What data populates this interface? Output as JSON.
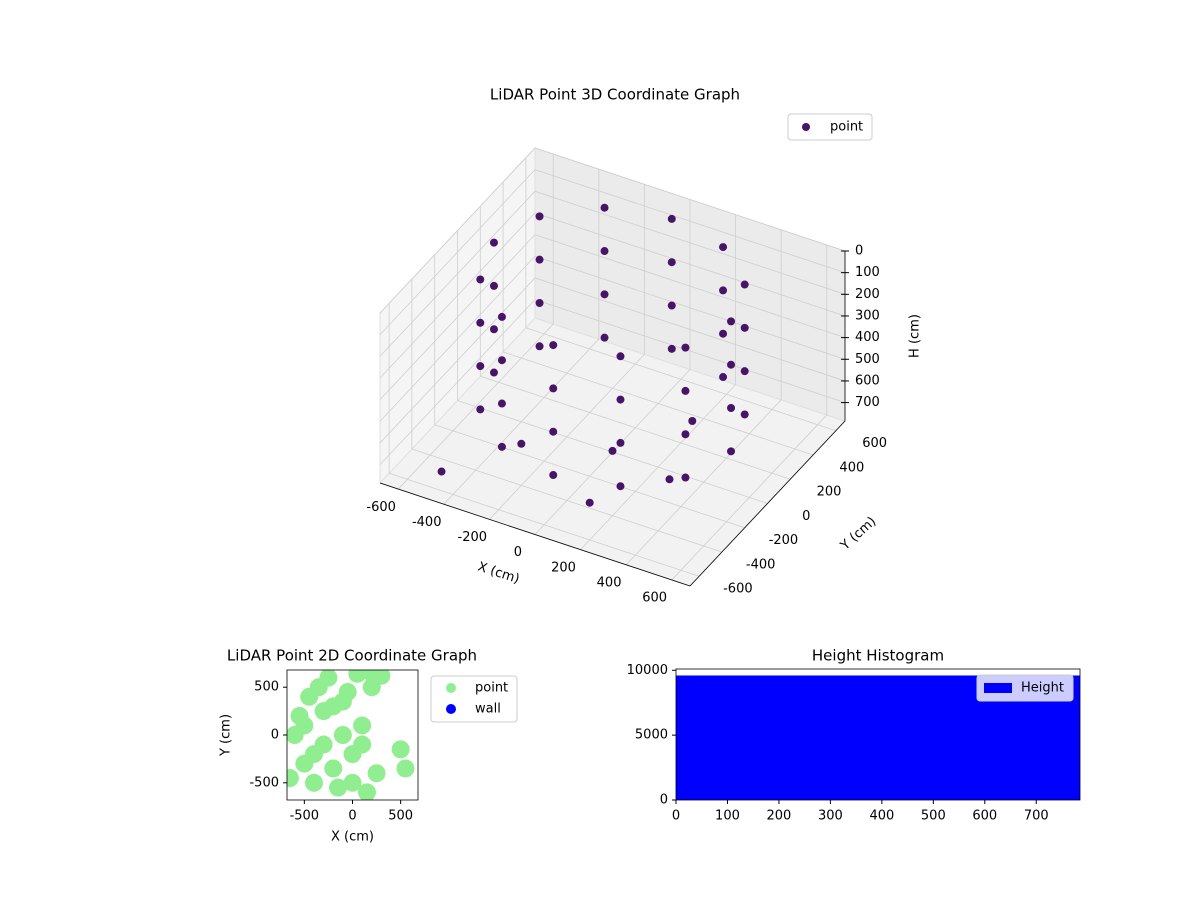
{
  "chart_data": [
    {
      "type": "scatter3d",
      "title": "LiDAR Point 3D Coordinate Graph",
      "xlabel": "X (cm)",
      "ylabel": "Y (cm)",
      "zlabel": "H (cm)",
      "xlim": [
        -680,
        680
      ],
      "ylim": [
        -680,
        680
      ],
      "zlim": [
        785,
        0
      ],
      "xticks": [
        -600,
        -400,
        -200,
        0,
        200,
        400,
        600
      ],
      "yticks": [
        -600,
        -400,
        -200,
        0,
        200,
        400,
        600
      ],
      "zticks": [
        0,
        100,
        200,
        300,
        400,
        500,
        600,
        700
      ],
      "legend": "upper right",
      "grid": true,
      "series": [
        {
          "name": "point",
          "color": "#481467",
          "x": [
            520,
            450,
            260,
            0,
            -260,
            -450,
            -520,
            -450,
            -260,
            0,
            260,
            450,
            520,
            450,
            260,
            0,
            -260,
            -450,
            -520,
            -450,
            -260,
            0,
            260,
            450,
            520,
            450,
            260,
            0,
            -260,
            -450,
            -520,
            -450,
            -260,
            0,
            260,
            450,
            520,
            450,
            260,
            0,
            -260,
            -450,
            -520,
            -450,
            -260,
            0,
            260,
            450,
            -300,
            100,
            300,
            -500,
            200,
            0
          ],
          "y": [
            0,
            260,
            450,
            520,
            450,
            260,
            0,
            -260,
            -450,
            -520,
            -450,
            -260,
            0,
            260,
            450,
            520,
            450,
            260,
            0,
            -260,
            -450,
            -520,
            -450,
            -260,
            0,
            260,
            450,
            520,
            450,
            260,
            0,
            -260,
            -450,
            -520,
            -450,
            -260,
            0,
            260,
            450,
            520,
            450,
            260,
            0,
            -260,
            -450,
            -520,
            -450,
            -260,
            -200,
            -400,
            -100,
            -500,
            300,
            0
          ],
          "z": [
            0,
            0,
            0,
            0,
            0,
            0,
            0,
            0,
            0,
            0,
            0,
            0,
            200,
            200,
            200,
            200,
            200,
            200,
            200,
            200,
            200,
            200,
            200,
            200,
            400,
            400,
            400,
            400,
            400,
            400,
            400,
            400,
            400,
            400,
            400,
            400,
            600,
            600,
            600,
            600,
            600,
            600,
            600,
            600,
            600,
            600,
            600,
            600,
            740,
            760,
            750,
            770,
            740,
            780
          ]
        }
      ]
    },
    {
      "type": "scatter",
      "title": "LiDAR Point 2D Coordinate Graph",
      "xlabel": "X (cm)",
      "ylabel": "Y (cm)",
      "xlim": [
        -680,
        680
      ],
      "ylim": [
        -680,
        680
      ],
      "xticks": [
        -500,
        0,
        500
      ],
      "yticks": [
        -500,
        0,
        500
      ],
      "legend": "outside right",
      "series": [
        {
          "name": "point",
          "color": "#90ee90",
          "x": [
            -600,
            -550,
            -500,
            -450,
            -400,
            -350,
            -300,
            -250,
            -200,
            -150,
            -100,
            -50,
            0,
            50,
            100,
            150,
            200,
            250,
            300,
            -500,
            -400,
            -300,
            -200,
            -100,
            0,
            100,
            200,
            500,
            -650,
            550
          ],
          "y": [
            0,
            200,
            -300,
            400,
            -500,
            500,
            -100,
            600,
            300,
            -550,
            0,
            450,
            -200,
            640,
            100,
            -600,
            500,
            -400,
            620,
            100,
            -200,
            250,
            -350,
            350,
            -500,
            -100,
            650,
            -150,
            -450,
            -350
          ]
        },
        {
          "name": "wall",
          "color": "#0000ff",
          "x": [],
          "y": []
        }
      ]
    },
    {
      "type": "histogram",
      "title": "Height Histogram",
      "name": "Height",
      "color": "#0000ff",
      "bins": [
        0,
        785
      ],
      "values": [
        9600
      ],
      "xlim": [
        0,
        785
      ],
      "ylim": [
        0,
        10100
      ],
      "xticks": [
        0,
        100,
        200,
        300,
        400,
        500,
        600,
        700
      ],
      "yticks": [
        0,
        5000,
        10000
      ],
      "legend": "upper right"
    }
  ]
}
